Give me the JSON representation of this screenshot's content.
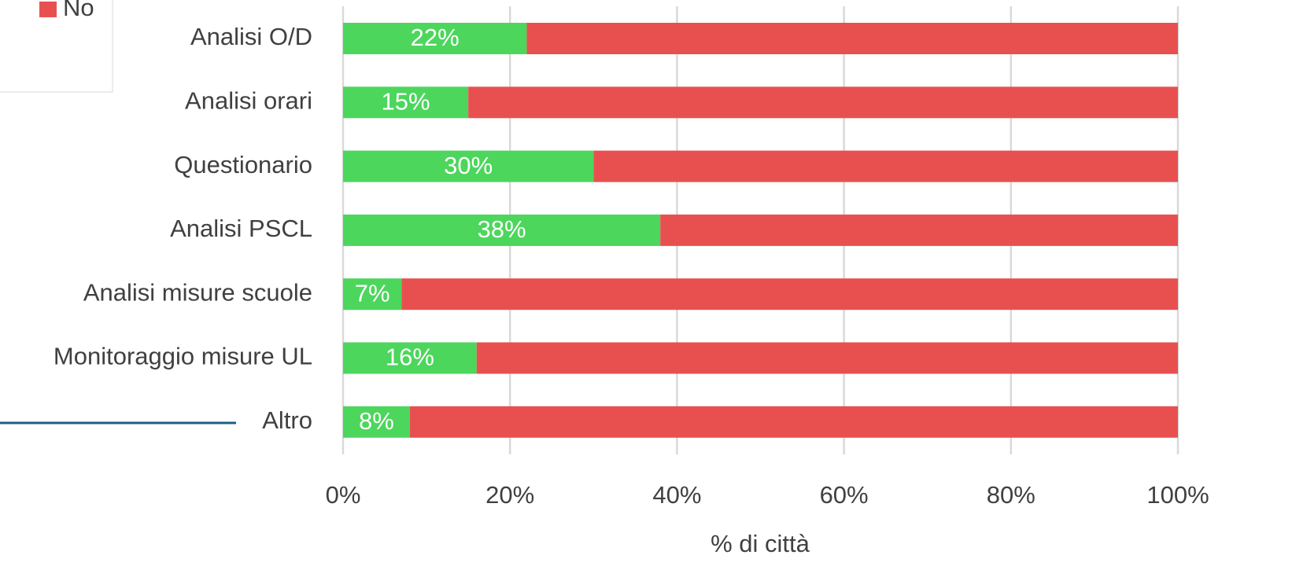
{
  "chart_data": {
    "type": "bar",
    "orientation": "horizontal",
    "stacked": true,
    "x_label": "% di città",
    "categories": [
      "Analisi O/D",
      "Analisi orari",
      "Questionario",
      "Analisi PSCL",
      "Analisi misure scuole",
      "Monitoraggio misure UL",
      "Altro"
    ],
    "series": [
      {
        "color": "#4cd65c",
        "values": [
          22,
          15,
          30,
          38,
          7,
          16,
          8
        ],
        "value_labels": [
          "22%",
          "15%",
          "30%",
          "38%",
          "7%",
          "16%",
          "8%"
        ]
      },
      {
        "name": "No",
        "color": "#e85050",
        "values": [
          78,
          85,
          70,
          62,
          93,
          84,
          92
        ]
      }
    ],
    "xlim": [
      0,
      100
    ],
    "xticks": [
      {
        "value": 0,
        "label": "0%"
      },
      {
        "value": 20,
        "label": "20%"
      },
      {
        "value": 40,
        "label": "40%"
      },
      {
        "value": 60,
        "label": "60%"
      },
      {
        "value": 80,
        "label": "80%"
      },
      {
        "value": 100,
        "label": "100%"
      }
    ],
    "grid": true
  }
}
